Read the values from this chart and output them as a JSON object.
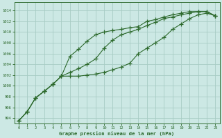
{
  "title": "Graphe pression niveau de la mer (hPa)",
  "background_color": "#cce8e4",
  "grid_color": "#a8ccc4",
  "line_color": "#2d6a2d",
  "x_values": [
    0,
    1,
    2,
    3,
    4,
    5,
    6,
    7,
    8,
    9,
    10,
    11,
    12,
    13,
    14,
    15,
    16,
    17,
    18,
    19,
    20,
    21,
    22,
    23
  ],
  "y_top": [
    993.5,
    995.2,
    997.8,
    999.0,
    1000.3,
    1001.8,
    1005.5,
    1006.8,
    1008.3,
    1009.5,
    1010.0,
    1010.3,
    1010.5,
    1010.8,
    1011.0,
    1012.0,
    1012.3,
    1012.8,
    1013.2,
    1013.5,
    1013.8,
    1013.8,
    1013.8,
    1013.0
  ],
  "y_mid": [
    993.5,
    995.2,
    997.8,
    999.0,
    1000.3,
    1001.8,
    1002.5,
    1003.2,
    1004.0,
    1005.0,
    1007.0,
    1008.5,
    1009.5,
    1010.0,
    1010.5,
    1011.2,
    1011.8,
    1012.5,
    1012.8,
    1013.2,
    1013.5,
    1013.8,
    1013.8,
    1013.0
  ],
  "y_bot": [
    993.5,
    995.2,
    997.8,
    999.0,
    1000.3,
    1001.8,
    1001.8,
    1001.8,
    1002.0,
    1002.2,
    1002.5,
    1003.0,
    1003.5,
    1004.2,
    1006.0,
    1007.0,
    1008.0,
    1009.0,
    1010.5,
    1011.5,
    1012.5,
    1013.2,
    1013.5,
    1013.0
  ],
  "ylim": [
    993.0,
    1015.5
  ],
  "xlim": [
    -0.5,
    23.5
  ],
  "yticks": [
    994,
    996,
    998,
    1000,
    1002,
    1004,
    1006,
    1008,
    1010,
    1012,
    1014
  ],
  "xticks": [
    0,
    1,
    2,
    3,
    4,
    5,
    6,
    7,
    8,
    9,
    10,
    11,
    12,
    13,
    14,
    15,
    16,
    17,
    18,
    19,
    20,
    21,
    22,
    23
  ]
}
